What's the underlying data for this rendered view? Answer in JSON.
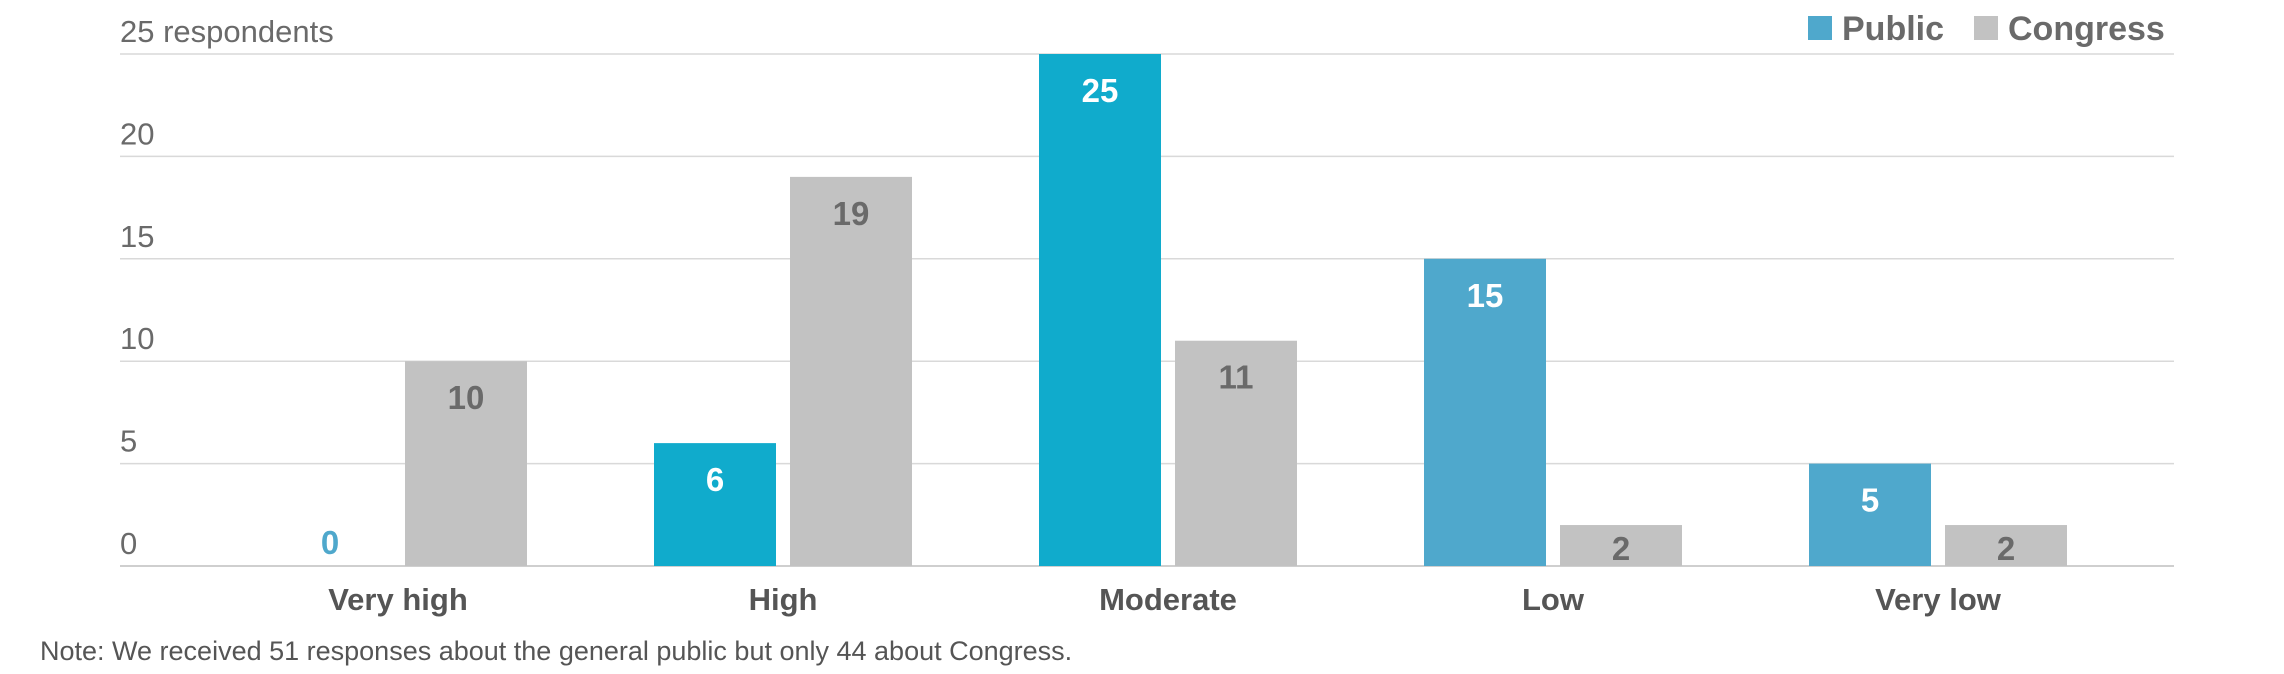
{
  "chart_data": {
    "type": "bar",
    "categories": [
      "Very high",
      "High",
      "Moderate",
      "Low",
      "Very low"
    ],
    "series": [
      {
        "name": "Public",
        "values": [
          0,
          6,
          25,
          15,
          5
        ]
      },
      {
        "name": "Congress",
        "values": [
          10,
          19,
          11,
          2,
          2
        ]
      }
    ],
    "ylim": [
      0,
      25
    ],
    "yticks": [
      0,
      5,
      10,
      15,
      20,
      25
    ],
    "ytick_labels": [
      "0",
      "5",
      "10",
      "15",
      "20",
      "25 respondents"
    ],
    "grid": true,
    "legend_position": "top-right",
    "colors": {
      "public_bars": [
        "#4fa8cc",
        "#10abcc",
        "#10abcc",
        "#4fa8cc",
        "#4fa8cc"
      ],
      "congress": "#c2c2c2",
      "public_label_on_bar": "#ffffff",
      "public_label_zero": "#4fa8cc",
      "congress_label": "#6a6a6a",
      "legend_public": "#4fa8cc"
    }
  },
  "note": "Note: We received 51 responses about the general public but only 44 about Congress."
}
